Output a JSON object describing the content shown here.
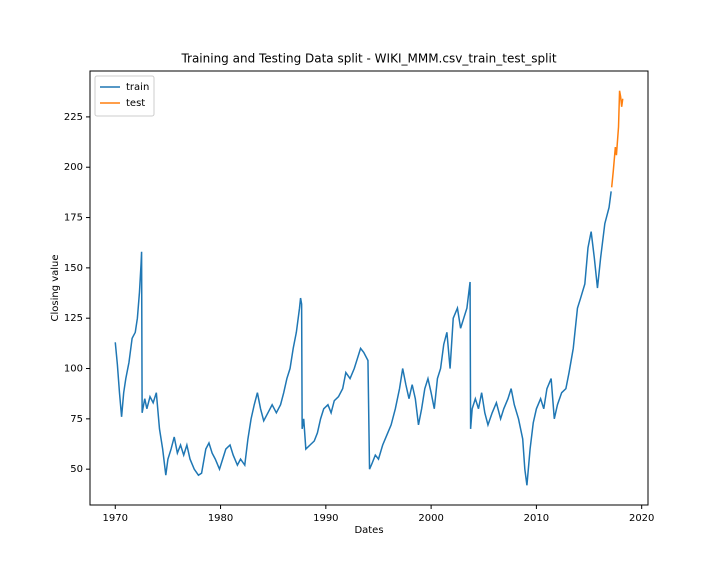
{
  "chart_data": {
    "type": "line",
    "title": "Training and Testing Data split - WIKI_MMM.csv_train_test_split",
    "x_label": "Dates",
    "y_label": "Closing value",
    "xlim": [
      1967.6,
      2020.6
    ],
    "ylim": [
      32.2,
      247.8
    ],
    "xticks": [
      1970,
      1980,
      1990,
      2000,
      2010,
      2020
    ],
    "yticks": [
      50,
      75,
      100,
      125,
      150,
      175,
      200,
      225
    ],
    "grid": false,
    "legend": "upper left",
    "series": [
      {
        "name": "train",
        "color": "#1f77b4",
        "x": [
          1970.0,
          1970.2,
          1970.4,
          1970.6,
          1970.8,
          1971.0,
          1971.3,
          1971.6,
          1971.9,
          1972.1,
          1972.3,
          1972.45,
          1972.5,
          1972.55,
          1972.8,
          1973.0,
          1973.3,
          1973.6,
          1973.9,
          1974.2,
          1974.5,
          1974.8,
          1975.0,
          1975.3,
          1975.6,
          1975.9,
          1976.2,
          1976.5,
          1976.8,
          1977.1,
          1977.5,
          1977.9,
          1978.2,
          1978.6,
          1978.9,
          1979.2,
          1979.5,
          1979.9,
          1980.2,
          1980.5,
          1980.9,
          1981.2,
          1981.6,
          1981.9,
          1982.3,
          1982.6,
          1982.9,
          1983.2,
          1983.5,
          1983.8,
          1984.1,
          1984.5,
          1984.9,
          1985.3,
          1985.7,
          1986.0,
          1986.3,
          1986.6,
          1986.9,
          1987.2,
          1987.5,
          1987.6,
          1987.7,
          1987.75,
          1987.9,
          1988.1,
          1988.5,
          1988.9,
          1989.2,
          1989.5,
          1989.8,
          1990.2,
          1990.5,
          1990.8,
          1991.2,
          1991.6,
          1991.9,
          1992.3,
          1992.7,
          1993.0,
          1993.3,
          1993.6,
          1994.0,
          1994.15,
          1994.4,
          1994.7,
          1995.0,
          1995.4,
          1995.8,
          1996.2,
          1996.6,
          1997.0,
          1997.3,
          1997.6,
          1997.9,
          1998.2,
          1998.5,
          1998.8,
          1999.1,
          1999.4,
          1999.7,
          2000.0,
          2000.3,
          2000.6,
          2000.9,
          2001.2,
          2001.5,
          2001.8,
          2002.1,
          2002.5,
          2002.8,
          2003.1,
          2003.4,
          2003.7,
          2003.75,
          2003.9,
          2004.2,
          2004.5,
          2004.8,
          2005.1,
          2005.4,
          2005.8,
          2006.2,
          2006.6,
          2006.9,
          2007.3,
          2007.6,
          2007.9,
          2008.3,
          2008.7,
          2008.9,
          2009.1,
          2009.4,
          2009.7,
          2010.0,
          2010.4,
          2010.7,
          2011.0,
          2011.4,
          2011.7,
          2012.0,
          2012.4,
          2012.8,
          2013.1,
          2013.5,
          2013.9,
          2014.2,
          2014.6,
          2014.9,
          2015.2,
          2015.5,
          2015.8,
          2016.1,
          2016.5,
          2016.9,
          2017.1
        ],
        "values": [
          113,
          102,
          88,
          76,
          88,
          95,
          103,
          115,
          118,
          125,
          138,
          152,
          158,
          78,
          85,
          80,
          86,
          83,
          88,
          70,
          60,
          47,
          55,
          60,
          66,
          58,
          62,
          57,
          62,
          55,
          50,
          47,
          48,
          60,
          63,
          58,
          55,
          50,
          55,
          60,
          62,
          57,
          52,
          55,
          52,
          65,
          75,
          82,
          88,
          80,
          74,
          78,
          82,
          78,
          82,
          88,
          95,
          100,
          110,
          118,
          130,
          135,
          132,
          70,
          75,
          60,
          62,
          64,
          68,
          75,
          80,
          82,
          78,
          84,
          86,
          90,
          98,
          95,
          100,
          105,
          110,
          108,
          104,
          50,
          53,
          57,
          55,
          62,
          67,
          72,
          80,
          90,
          100,
          92,
          85,
          92,
          85,
          72,
          80,
          90,
          95,
          88,
          80,
          95,
          100,
          112,
          118,
          100,
          125,
          130,
          120,
          125,
          130,
          143,
          70,
          80,
          85,
          80,
          88,
          78,
          72,
          78,
          83,
          75,
          80,
          85,
          90,
          82,
          75,
          65,
          50,
          42,
          60,
          73,
          80,
          85,
          80,
          90,
          95,
          75,
          82,
          88,
          90,
          98,
          110,
          130,
          135,
          142,
          160,
          168,
          155,
          140,
          155,
          172,
          180,
          188
        ]
      },
      {
        "name": "test",
        "color": "#ff7f0e",
        "x": [
          2017.15,
          2017.3,
          2017.5,
          2017.6,
          2017.8,
          2017.9,
          2018.0,
          2018.1,
          2018.2
        ],
        "values": [
          190,
          198,
          210,
          206,
          220,
          238,
          235,
          230,
          234
        ]
      }
    ]
  }
}
